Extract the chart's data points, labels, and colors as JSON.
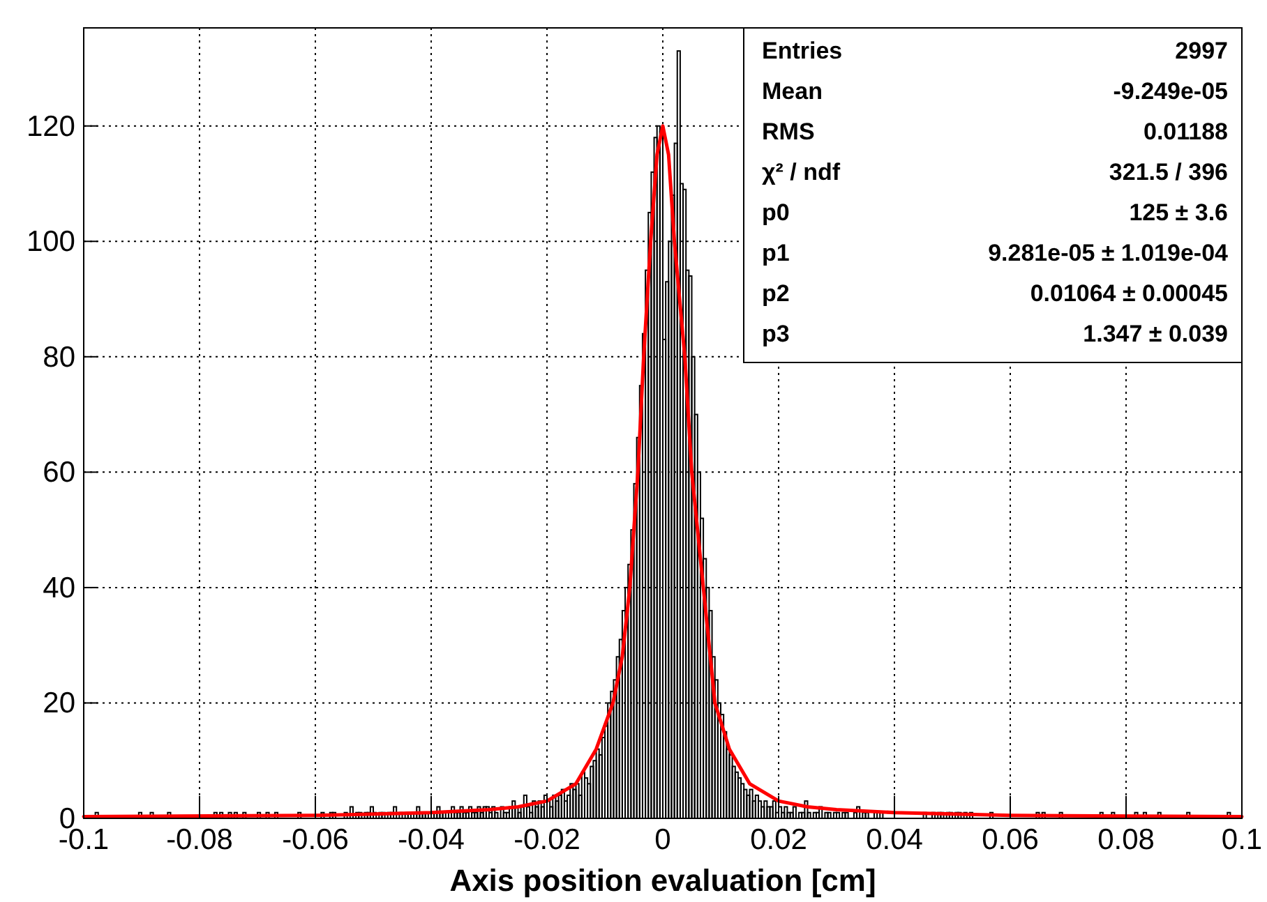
{
  "chart_data": {
    "type": "histogram",
    "xlabel": "Axis position evaluation [cm]",
    "xlim": [
      -0.1,
      0.1
    ],
    "xticks": [
      -0.1,
      -0.08,
      -0.06,
      -0.04,
      -0.02,
      0,
      0.02,
      0.04,
      0.06,
      0.08,
      0.1
    ],
    "ylim": [
      0,
      137
    ],
    "yticks": [
      0,
      20,
      40,
      60,
      80,
      100,
      120
    ],
    "grid": true,
    "annotations": [
      "Entries",
      "2997",
      "Mean",
      "-9.249e-05",
      "RMS",
      "0.01188",
      "χ² / ndf",
      "321.5 / 396",
      "p0",
      "125 ± 3.6",
      "p1",
      "9.281e-05 ± 1.019e-04",
      "p2",
      "0.01064 ± 0.00045",
      "p3",
      "1.347 ± 0.039"
    ],
    "series": [
      {
        "color": "#000000",
        "bins": [
          -0.1,
          -0.0995,
          -0.099,
          -0.0985,
          -0.098,
          -0.0975,
          -0.097,
          -0.0965,
          -0.096,
          -0.0955,
          -0.095,
          -0.0945,
          -0.094,
          -0.0935,
          -0.093,
          -0.0925,
          -0.092,
          -0.0915,
          -0.091,
          -0.0905,
          -0.09,
          -0.0895,
          -0.089,
          -0.0885,
          -0.088,
          -0.0875,
          -0.087,
          -0.0865,
          -0.086,
          -0.0855,
          -0.085,
          -0.0845,
          -0.084,
          -0.0835,
          -0.083,
          -0.0825,
          -0.082,
          -0.0815,
          -0.081,
          -0.0805,
          -0.08,
          -0.0795,
          -0.079,
          -0.0785,
          -0.078,
          -0.0775,
          -0.077,
          -0.0765,
          -0.076,
          -0.0755,
          -0.075,
          -0.0745,
          -0.074,
          -0.0735,
          -0.073,
          -0.0725,
          -0.072,
          -0.0715,
          -0.071,
          -0.0705,
          -0.07,
          -0.0695,
          -0.069,
          -0.0685,
          -0.068,
          -0.0675,
          -0.067,
          -0.0665,
          -0.066,
          -0.0655,
          -0.065,
          -0.0645,
          -0.064,
          -0.0635,
          -0.063,
          -0.0625,
          -0.062,
          -0.0615,
          -0.061,
          -0.0605,
          -0.06,
          -0.0595,
          -0.059,
          -0.0585,
          -0.058,
          -0.0575,
          -0.057,
          -0.0565,
          -0.056,
          -0.0555,
          -0.055,
          -0.0545,
          -0.054,
          -0.0535,
          -0.053,
          -0.0525,
          -0.052,
          -0.0515,
          -0.051,
          -0.0505,
          -0.05,
          -0.0495,
          -0.049,
          -0.0485,
          -0.048,
          -0.0475,
          -0.047,
          -0.0465,
          -0.046,
          -0.0455,
          -0.045,
          -0.0445,
          -0.044,
          -0.0435,
          -0.043,
          -0.0425,
          -0.042,
          -0.0415,
          -0.041,
          -0.0405,
          -0.04,
          -0.0395,
          -0.039,
          -0.0385,
          -0.038,
          -0.0375,
          -0.037,
          -0.0365,
          -0.036,
          -0.0355,
          -0.035,
          -0.0345,
          -0.034,
          -0.0335,
          -0.033,
          -0.0325,
          -0.032,
          -0.0315,
          -0.031,
          -0.0305,
          -0.03,
          -0.0295,
          -0.029,
          -0.0285,
          -0.028,
          -0.0275,
          -0.027,
          -0.0265,
          -0.026,
          -0.0255,
          -0.025,
          -0.0245,
          -0.024,
          -0.0235,
          -0.023,
          -0.0225,
          -0.022,
          -0.0215,
          -0.021,
          -0.0205,
          -0.02,
          -0.0195,
          -0.019,
          -0.0185,
          -0.018,
          -0.0175,
          -0.017,
          -0.0165,
          -0.016,
          -0.0155,
          -0.015,
          -0.0145,
          -0.014,
          -0.0135,
          -0.013,
          -0.0125,
          -0.012,
          -0.0115,
          -0.011,
          -0.0105,
          -0.01,
          -0.0095,
          -0.009,
          -0.0085,
          -0.008,
          -0.0075,
          -0.007,
          -0.0065,
          -0.006,
          -0.0055,
          -0.005,
          -0.0045,
          -0.004,
          -0.0035,
          -0.003,
          -0.0025,
          -0.002,
          -0.0015,
          -0.001,
          -0.0005,
          0,
          0.0005,
          0.001,
          0.0015,
          0.002,
          0.0025,
          0.003,
          0.0035,
          0.004,
          0.0045,
          0.005,
          0.0055,
          0.006,
          0.0065,
          0.007,
          0.0075,
          0.008,
          0.0085,
          0.009,
          0.0095,
          0.01,
          0.0105,
          0.011,
          0.0115,
          0.012,
          0.0125,
          0.013,
          0.0135,
          0.014,
          0.0145,
          0.015,
          0.0155,
          0.016,
          0.0165,
          0.017,
          0.0175,
          0.018,
          0.0185,
          0.019,
          0.0195,
          0.02,
          0.0205,
          0.021,
          0.0215,
          0.022,
          0.0225,
          0.023,
          0.0235,
          0.024,
          0.0245,
          0.025,
          0.0255,
          0.026,
          0.0265,
          0.027,
          0.0275,
          0.028,
          0.0285,
          0.029,
          0.0295,
          0.03,
          0.0305,
          0.031,
          0.0315,
          0.032,
          0.0325,
          0.033,
          0.0335,
          0.034,
          0.0345,
          0.035,
          0.0355,
          0.036,
          0.0365,
          0.037,
          0.0375,
          0.038,
          0.0385,
          0.039,
          0.0395,
          0.04,
          0.0405,
          0.041,
          0.0415,
          0.042,
          0.0425,
          0.043,
          0.0435,
          0.044,
          0.0445,
          0.045,
          0.0455,
          0.046,
          0.0465,
          0.047,
          0.0475,
          0.048,
          0.0485,
          0.049,
          0.0495,
          0.05,
          0.0505,
          0.051,
          0.0515,
          0.052,
          0.0525,
          0.053,
          0.0535,
          0.054,
          0.0545,
          0.055,
          0.0555,
          0.056,
          0.0565,
          0.057,
          0.0575,
          0.058,
          0.0585,
          0.059,
          0.0595,
          0.06,
          0.0605,
          0.061,
          0.0615,
          0.062,
          0.0625,
          0.063,
          0.0635,
          0.064,
          0.0645,
          0.065,
          0.0655,
          0.066,
          0.0665,
          0.067,
          0.0675,
          0.068,
          0.0685,
          0.069,
          0.0695,
          0.07,
          0.0705,
          0.071,
          0.0715,
          0.072,
          0.0725,
          0.073,
          0.0735,
          0.074,
          0.0745,
          0.075,
          0.0755,
          0.076,
          0.0765,
          0.077,
          0.0775,
          0.078,
          0.0785,
          0.079,
          0.0795,
          0.08,
          0.0805,
          0.081,
          0.0815,
          0.082,
          0.0825,
          0.083,
          0.0835,
          0.084,
          0.0845,
          0.085,
          0.0855,
          0.086,
          0.0865,
          0.087,
          0.0875,
          0.088,
          0.0885,
          0.089,
          0.0895,
          0.09,
          0.0905,
          0.091,
          0.0915,
          0.092,
          0.0925,
          0.093,
          0.0935,
          0.094,
          0.0945,
          0.095,
          0.0955,
          0.096,
          0.0965,
          0.097,
          0.0975,
          0.098,
          0.0985,
          0.099,
          0.0995,
          0.1
        ],
        "values": [
          0,
          0,
          0,
          0,
          1,
          0,
          0,
          0,
          0,
          0,
          0,
          0,
          0,
          0,
          0,
          0,
          0,
          0,
          0,
          1,
          0,
          0,
          0,
          1,
          0,
          0,
          0,
          0,
          0,
          1,
          0,
          0,
          0,
          0,
          0,
          0,
          0,
          0,
          0,
          0,
          0,
          0,
          0,
          0,
          0,
          1,
          0,
          1,
          0,
          0,
          1,
          0,
          1,
          0,
          0,
          1,
          0,
          0,
          0,
          0,
          1,
          0,
          0,
          1,
          0,
          0,
          1,
          0,
          0,
          0,
          0,
          0,
          0,
          0,
          1,
          0,
          0,
          0,
          0,
          0,
          0,
          0,
          1,
          0,
          0,
          1,
          1,
          0,
          0,
          0,
          1,
          0,
          2,
          0,
          1,
          1,
          0,
          1,
          1,
          2,
          1,
          0,
          1,
          1,
          0,
          1,
          1,
          2,
          0,
          1,
          0,
          1,
          1,
          0,
          1,
          2,
          1,
          1,
          1,
          0,
          1,
          1,
          2,
          1,
          1,
          0,
          1,
          2,
          1,
          1,
          2,
          1,
          1,
          2,
          1,
          1,
          2,
          1,
          2,
          2,
          1,
          2,
          1,
          0,
          2,
          1,
          1,
          2,
          3,
          2,
          1,
          2,
          4,
          2,
          1,
          3,
          2,
          3,
          2,
          4,
          3,
          2,
          4,
          3,
          4,
          5,
          3,
          4,
          6,
          5,
          6,
          4,
          8,
          7,
          6,
          9,
          10,
          12,
          11,
          14,
          16,
          20,
          22,
          24,
          28,
          31,
          36,
          40,
          44,
          50,
          58,
          66,
          75,
          84,
          95,
          105,
          112,
          118,
          120,
          119,
          83,
          93,
          100,
          108,
          117,
          133,
          110,
          109,
          95,
          94,
          80,
          70,
          60,
          52,
          45,
          40,
          36,
          28,
          24,
          20,
          18,
          15,
          12,
          11,
          9,
          8,
          7,
          6,
          5,
          4,
          5,
          3,
          4,
          3,
          2,
          3,
          2,
          2,
          3,
          1,
          2,
          1,
          2,
          1,
          1,
          2,
          0,
          1,
          1,
          3,
          1,
          0,
          1,
          1,
          2,
          0,
          1,
          1,
          0,
          1,
          1,
          0,
          1,
          1,
          0,
          0,
          1,
          2,
          0,
          1,
          1,
          0,
          0,
          1,
          0,
          1,
          0,
          0,
          0,
          0,
          0,
          0,
          0,
          0,
          0,
          0,
          0,
          0,
          0,
          0,
          1,
          0,
          0,
          1,
          0,
          1,
          1,
          0,
          1,
          1,
          0,
          1,
          1,
          0,
          1,
          0,
          1,
          0,
          0,
          0,
          0,
          0,
          0,
          1,
          0,
          0,
          0,
          0,
          0,
          0,
          0,
          0,
          0,
          0,
          0,
          0,
          0,
          0,
          0,
          1,
          0,
          1,
          0,
          0,
          0,
          0,
          0,
          1,
          0,
          0,
          0,
          0,
          0,
          0,
          0,
          0,
          0,
          0,
          0,
          0,
          0,
          1,
          0,
          0,
          0,
          1,
          0,
          0,
          0,
          0,
          0,
          0,
          0,
          1,
          0,
          0,
          1,
          0,
          0,
          0,
          0,
          1,
          0,
          0,
          0,
          0,
          0,
          0,
          0,
          0,
          0,
          1,
          0,
          0,
          0,
          0,
          0,
          0,
          0,
          0,
          0,
          0,
          0,
          0,
          0,
          1,
          0,
          0,
          0,
          0
        ]
      },
      {
        "type": "line",
        "color": "#ff0000",
        "x": [
          -0.1,
          -0.06,
          -0.04,
          -0.03,
          -0.025,
          -0.02,
          -0.015,
          -0.0115,
          -0.0086,
          -0.007,
          -0.0057,
          -0.0043,
          -0.0033,
          -0.0021,
          -0.001,
          0,
          0.001,
          0.002,
          0.0038,
          0.005,
          0.007,
          0.009,
          0.0115,
          0.015,
          0.02,
          0.025,
          0.03,
          0.04,
          0.06,
          0.1
        ],
        "values": [
          0.3,
          0.5,
          1,
          1.5,
          2,
          3,
          6,
          12,
          20,
          28,
          40,
          60,
          80,
          100,
          115,
          120,
          115,
          100,
          80,
          60,
          40,
          20,
          12,
          6,
          3,
          2,
          1.5,
          1,
          0.5,
          0.3
        ]
      }
    ]
  }
}
